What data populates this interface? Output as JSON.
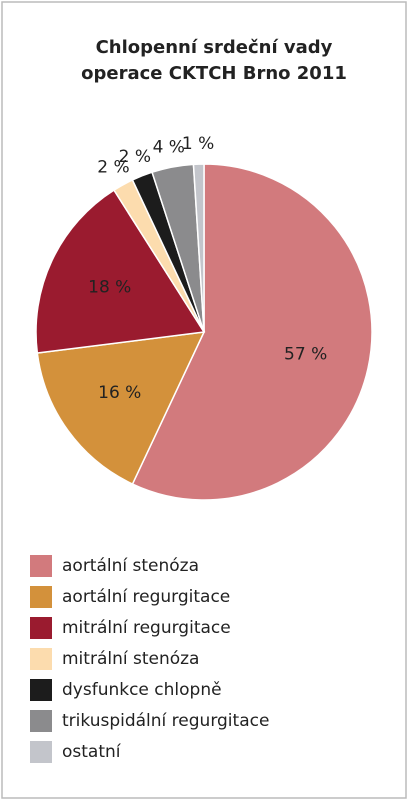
{
  "chart_data": {
    "type": "pie",
    "title": [
      "Chlopenní srdeční vady",
      "operace CKTCH Brno 2011"
    ],
    "categories": [
      "aortální stenóza",
      "aortální regurgitace",
      "mitrální regurgitace",
      "mitrální stenóza",
      "dysfunkce chlopně",
      "trikuspidální regurgitace",
      "ostatní"
    ],
    "values": [
      57,
      16,
      18,
      2,
      2,
      4,
      1
    ],
    "value_labels": [
      "57 %",
      "16 %",
      "18 %",
      "2 %",
      "2 %",
      "4 %",
      "1 %"
    ],
    "colors": [
      "#d27a7d",
      "#d3913b",
      "#9a1b2f",
      "#fcdcae",
      "#1c1c1c",
      "#8b8b8d",
      "#c3c5cb"
    ]
  }
}
